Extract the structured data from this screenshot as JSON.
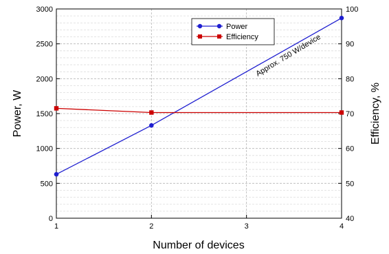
{
  "chart_data": {
    "type": "line",
    "title": "",
    "xlabel": "Number of devices",
    "ylabel_left": "Power, W",
    "ylabel_right": "Efficiency, %",
    "x_ticks": [
      1,
      2,
      3,
      4
    ],
    "xlim": [
      1,
      4
    ],
    "y_left_ticks": [
      0,
      500,
      1000,
      1500,
      2000,
      2500,
      3000
    ],
    "y_left_lim": [
      0,
      3000
    ],
    "y_right_ticks": [
      40,
      50,
      60,
      70,
      80,
      90,
      100
    ],
    "y_right_lim": [
      40,
      100
    ],
    "grid": true,
    "legend_position": "top-center",
    "series": [
      {
        "name": "Power",
        "axis": "left",
        "color": "#1f1fd0",
        "marker": "circle",
        "x": [
          1,
          2,
          4
        ],
        "values": [
          630,
          1330,
          2870
        ]
      },
      {
        "name": "Efficiency",
        "axis": "right",
        "color": "#cc0000",
        "marker": "square",
        "x": [
          1,
          2,
          4
        ],
        "values": [
          71.5,
          70.3,
          70.3
        ]
      }
    ],
    "annotation": "Approx. 750 W/device"
  }
}
